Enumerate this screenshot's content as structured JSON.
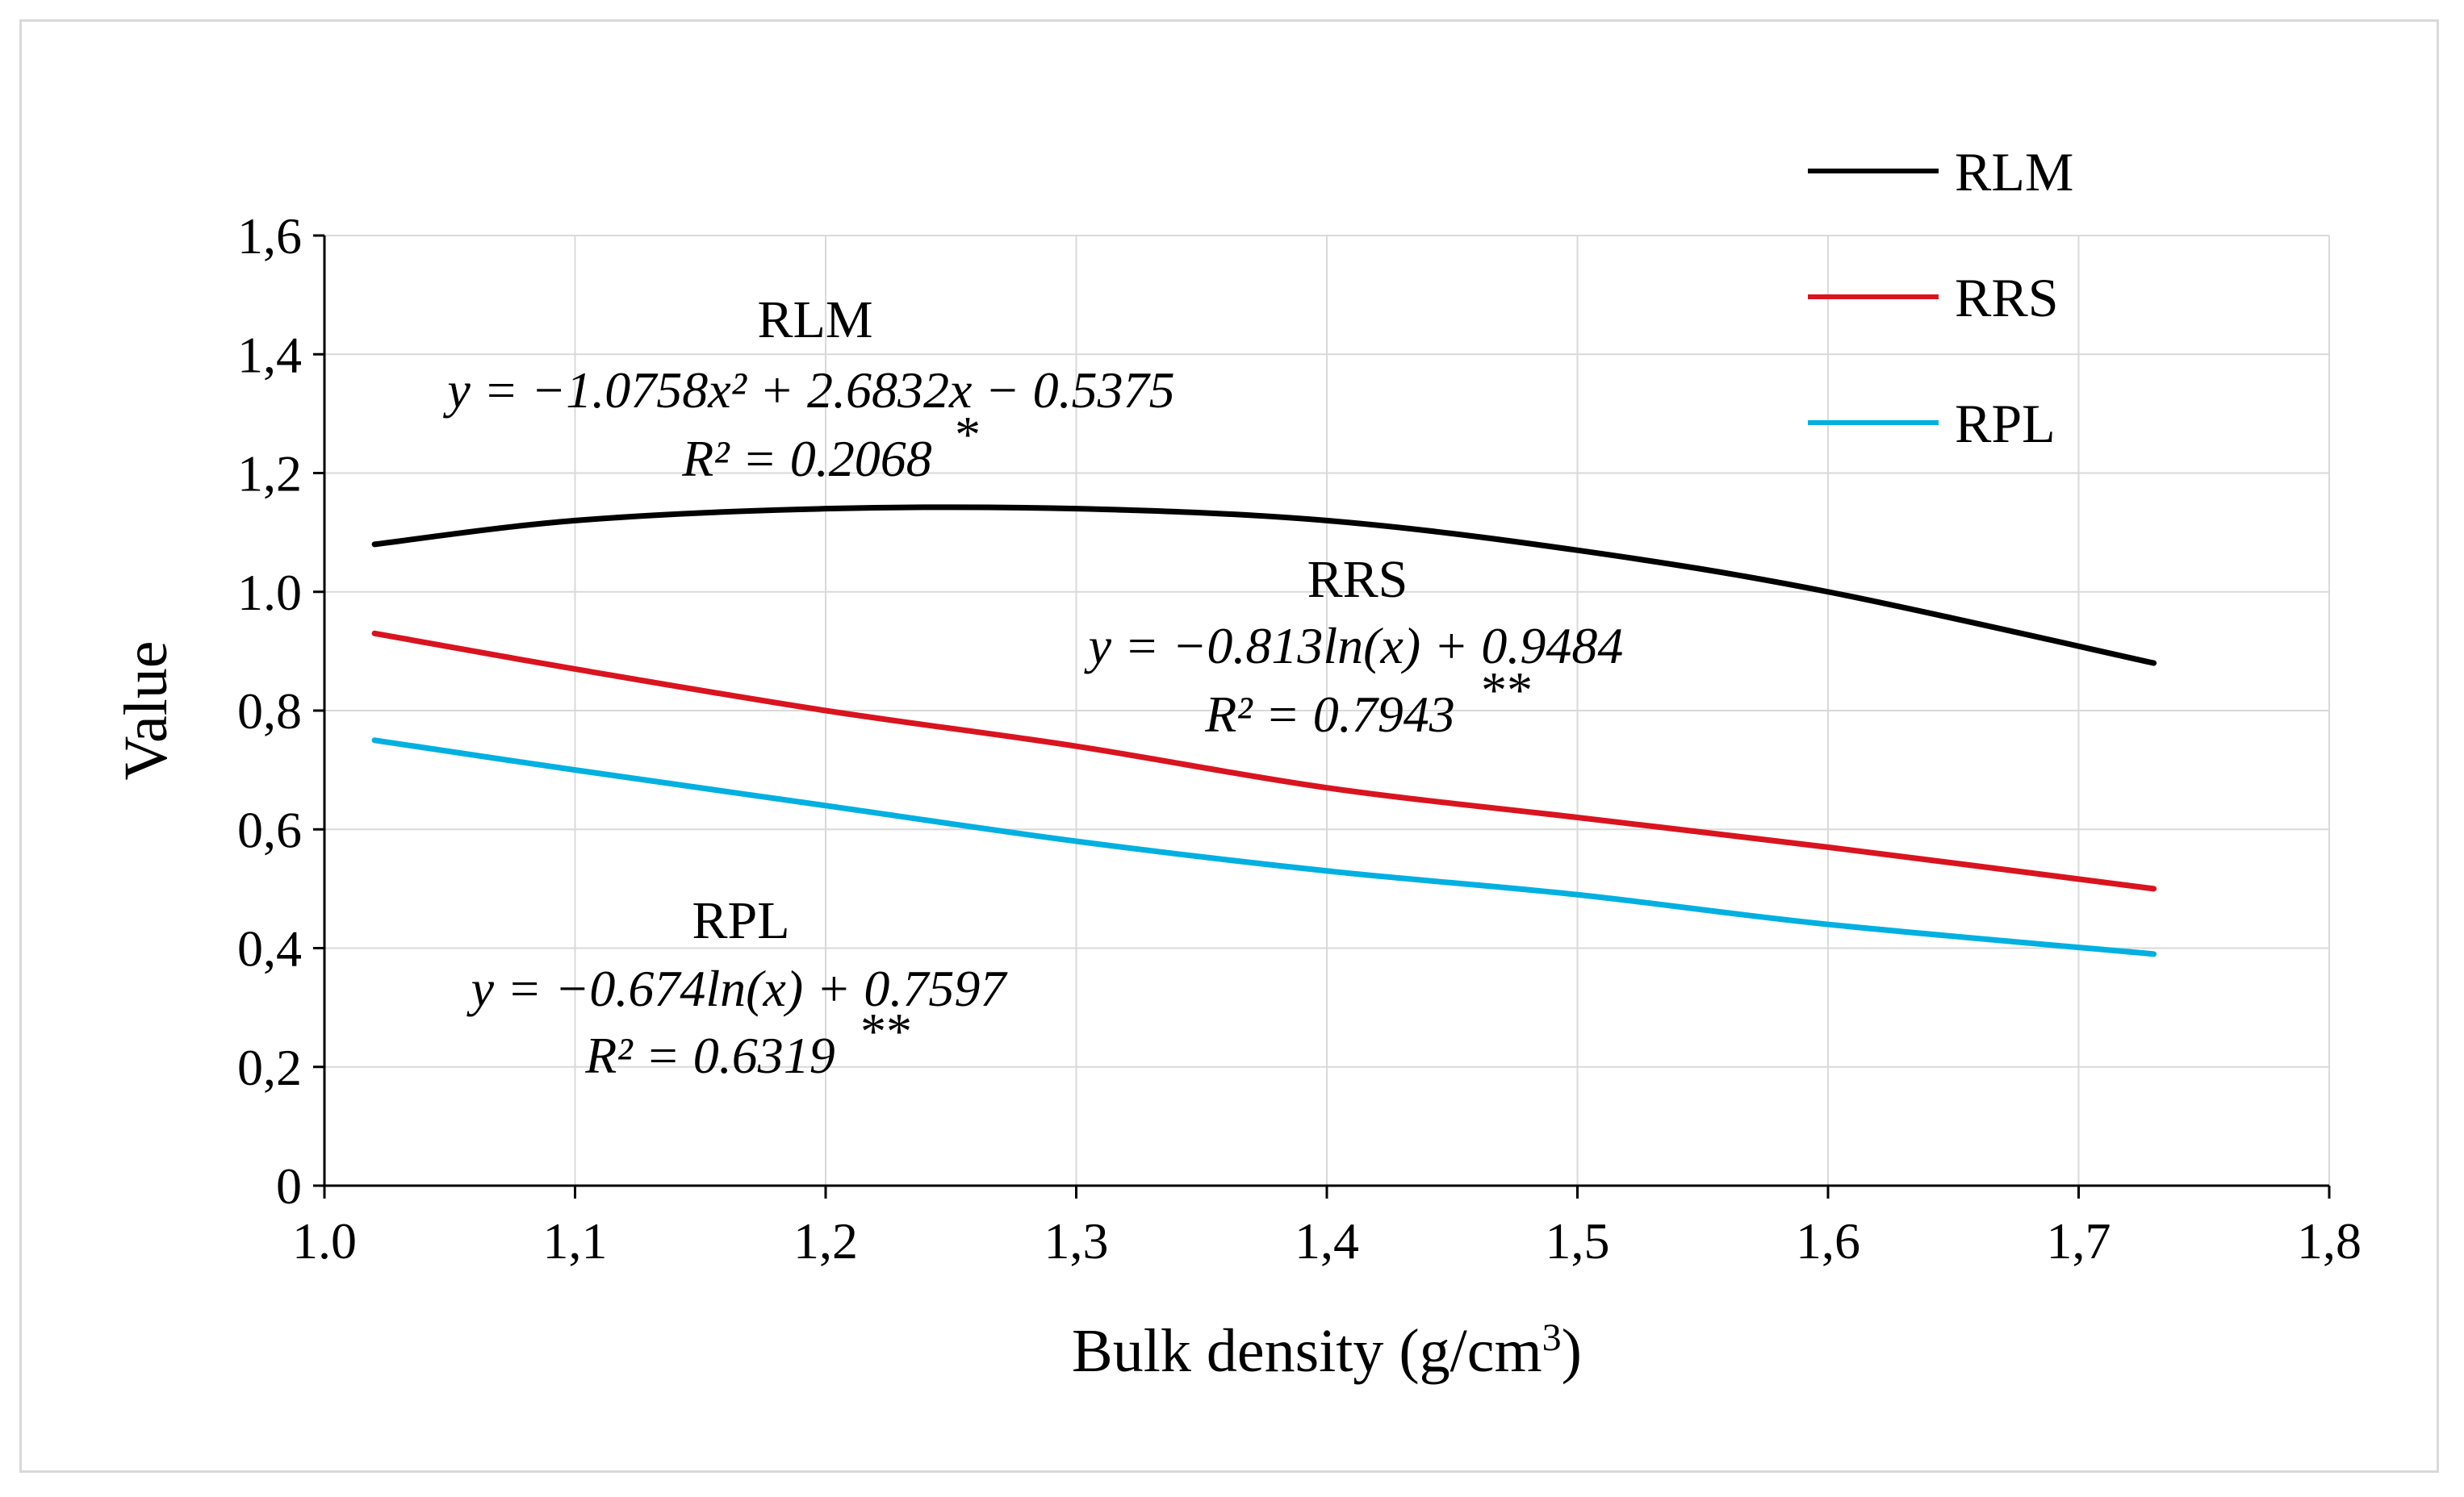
{
  "chart_data": {
    "type": "line",
    "xlabel": "Bulk density (g/cm3)",
    "xlabel_main": "Bulk density (g/cm",
    "xlabel_sup": "3",
    "xlabel_close": ")",
    "ylabel": "Value",
    "xlim": [
      1.0,
      1.8
    ],
    "ylim": [
      0,
      1.6
    ],
    "x_ticks": [
      "1.0",
      "1,1",
      "1,2",
      "1,3",
      "1,4",
      "1,5",
      "1,6",
      "1,7",
      "1,8"
    ],
    "y_ticks": [
      "0",
      "0,2",
      "0,4",
      "0,6",
      "0,8",
      "1.0",
      "1,2",
      "1,4",
      "1,6"
    ],
    "grid": true,
    "legend_position": "top-right",
    "series": [
      {
        "name": "RLM",
        "color": "#000000",
        "x": [
          1.02,
          1.1,
          1.2,
          1.3,
          1.4,
          1.5,
          1.6,
          1.73
        ],
        "values": [
          1.08,
          1.12,
          1.14,
          1.14,
          1.12,
          1.07,
          1.0,
          0.88
        ]
      },
      {
        "name": "RRS",
        "color": "#d9141f",
        "x": [
          1.02,
          1.1,
          1.2,
          1.3,
          1.4,
          1.5,
          1.6,
          1.73
        ],
        "values": [
          0.93,
          0.87,
          0.8,
          0.74,
          0.67,
          0.62,
          0.57,
          0.5
        ]
      },
      {
        "name": "RPL",
        "color": "#00b0e0",
        "x": [
          1.02,
          1.1,
          1.2,
          1.3,
          1.4,
          1.5,
          1.6,
          1.73
        ],
        "values": [
          0.75,
          0.7,
          0.64,
          0.58,
          0.53,
          0.49,
          0.44,
          0.39
        ]
      }
    ],
    "annotations": [
      {
        "series": "RLM",
        "title": "RLM",
        "equation": "y = −1.0758x² + 2.6832x − 0.5375",
        "r2": "R² = 0.2068",
        "significance": "*"
      },
      {
        "series": "RRS",
        "title": "RRS",
        "equation": "y = −0.813ln(x) + 0.9484",
        "r2": "R² = 0.7943",
        "significance": "**"
      },
      {
        "series": "RPL",
        "title": "RPL",
        "equation": "y = −0.674ln(x) + 0.7597",
        "r2": "R² = 0.6319",
        "significance": "**"
      }
    ]
  }
}
